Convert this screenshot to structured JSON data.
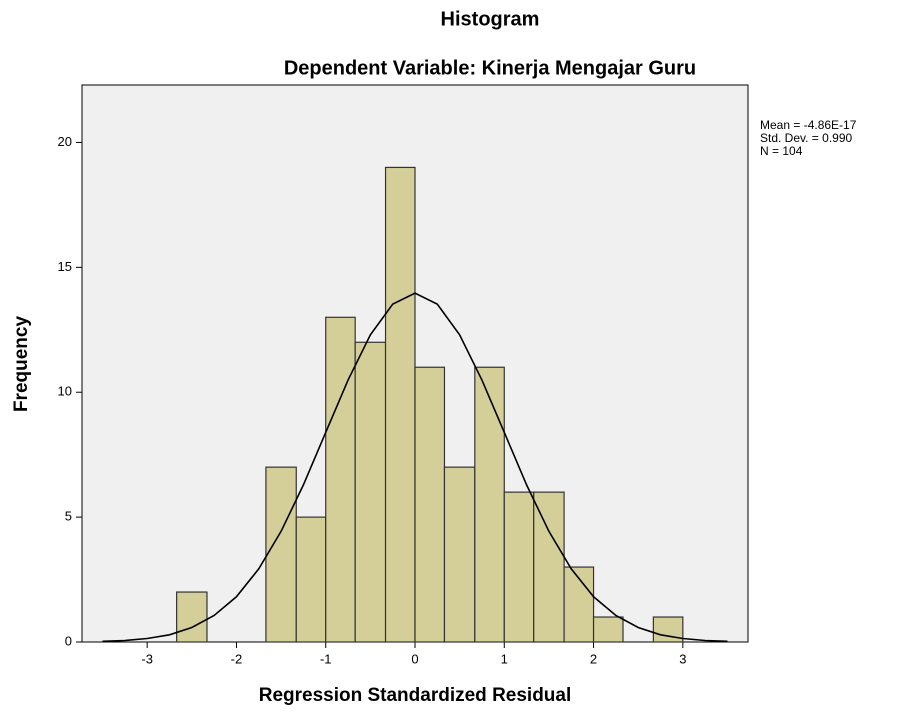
{
  "chart_data": {
    "type": "histogram",
    "title": "Histogram",
    "subtitle": "Dependent Variable: Kinerja Mengajar Guru",
    "x_label": "Regression Standardized Residual",
    "y_label": "Frequency",
    "annotations": [
      "Mean = -4.86E-17",
      "Std. Dev. = 0.990",
      "N = 104"
    ],
    "bins": [
      -2.67,
      -2.33,
      -2,
      -1.67,
      -1.33,
      -1,
      -0.67,
      -0.33,
      0,
      0.33,
      0.67,
      1,
      1.33,
      1.67,
      2,
      2.33,
      2.67,
      3
    ],
    "counts": [
      2,
      0,
      0,
      7,
      5,
      13,
      12,
      19,
      11,
      7,
      11,
      6,
      6,
      3,
      1,
      0,
      1
    ],
    "color": "#d4cf99",
    "edge_color": "#333333",
    "curve": {
      "x": [
        -3.5,
        -3.25,
        -3,
        -2.75,
        -2.5,
        -2.25,
        -2,
        -1.75,
        -1.5,
        -1.25,
        -1,
        -0.75,
        -0.5,
        -0.25,
        0,
        0.25,
        0.5,
        0.75,
        1,
        1.25,
        1.5,
        1.75,
        2,
        2.25,
        2.5,
        2.75,
        3,
        3.25,
        3.5
      ],
      "values": [
        0.03,
        0.06,
        0.14,
        0.29,
        0.58,
        1.06,
        1.81,
        2.93,
        4.43,
        6.29,
        8.39,
        10.48,
        12.3,
        13.53,
        13.97,
        13.53,
        12.3,
        10.48,
        8.39,
        6.29,
        4.43,
        2.93,
        1.81,
        1.06,
        0.58,
        0.29,
        0.14,
        0.06,
        0.03
      ],
      "color": "#000000"
    },
    "xlim": [
      -3.73,
      3.73
    ],
    "ylim": [
      0,
      22.3
    ],
    "xticks": [
      -3,
      -2,
      -1,
      0,
      1,
      2,
      3
    ],
    "yticks": [
      0,
      5,
      10,
      15,
      20
    ],
    "background": "#f0f0f0"
  }
}
